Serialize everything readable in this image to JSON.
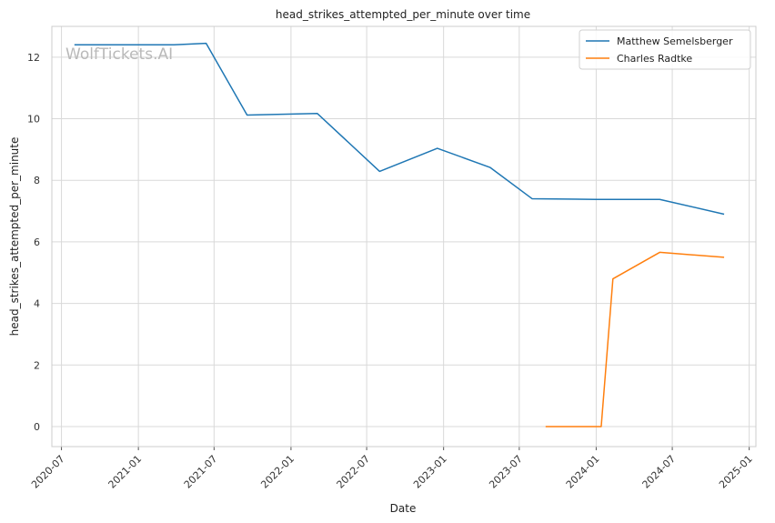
{
  "watermark": "WolfTickets.AI",
  "chart_data": {
    "type": "line",
    "title": "head_strikes_attempted_per_minute over time",
    "xlabel": "Date",
    "ylabel": "head_strikes_attempted_per_minute",
    "x_ticks": [
      "2020-07",
      "2021-01",
      "2021-07",
      "2022-01",
      "2022-07",
      "2023-01",
      "2023-07",
      "2024-01",
      "2024-07",
      "2025-01"
    ],
    "y_ticks": [
      0,
      2,
      4,
      6,
      8,
      10,
      12
    ],
    "xlim": [
      "2020-06-08",
      "2025-01-17"
    ],
    "ylim": [
      -0.65,
      13.0
    ],
    "grid": true,
    "legend_position": "top-right",
    "colors": {
      "Matthew Semelsberger": "#1f77b4",
      "Charles Radtke": "#ff7f0e"
    },
    "series": [
      {
        "name": "Matthew Semelsberger",
        "points": [
          {
            "x": "2020-08-01",
            "y": 12.4
          },
          {
            "x": "2021-03-27",
            "y": 12.4
          },
          {
            "x": "2021-06-12",
            "y": 12.45
          },
          {
            "x": "2021-09-18",
            "y": 10.12
          },
          {
            "x": "2022-03-05",
            "y": 10.17
          },
          {
            "x": "2022-08-01",
            "y": 8.29
          },
          {
            "x": "2022-12-17",
            "y": 9.04
          },
          {
            "x": "2023-04-22",
            "y": 8.42
          },
          {
            "x": "2023-08-01",
            "y": 7.4
          },
          {
            "x": "2024-01-01",
            "y": 7.38
          },
          {
            "x": "2024-06-01",
            "y": 7.38
          },
          {
            "x": "2024-11-02",
            "y": 6.9
          }
        ]
      },
      {
        "name": "Charles Radtke",
        "points": [
          {
            "x": "2023-09-02",
            "y": 0.0
          },
          {
            "x": "2024-01-13",
            "y": 0.0
          },
          {
            "x": "2024-02-10",
            "y": 4.8
          },
          {
            "x": "2024-06-01",
            "y": 5.66
          },
          {
            "x": "2024-11-02",
            "y": 5.5
          }
        ]
      }
    ]
  }
}
